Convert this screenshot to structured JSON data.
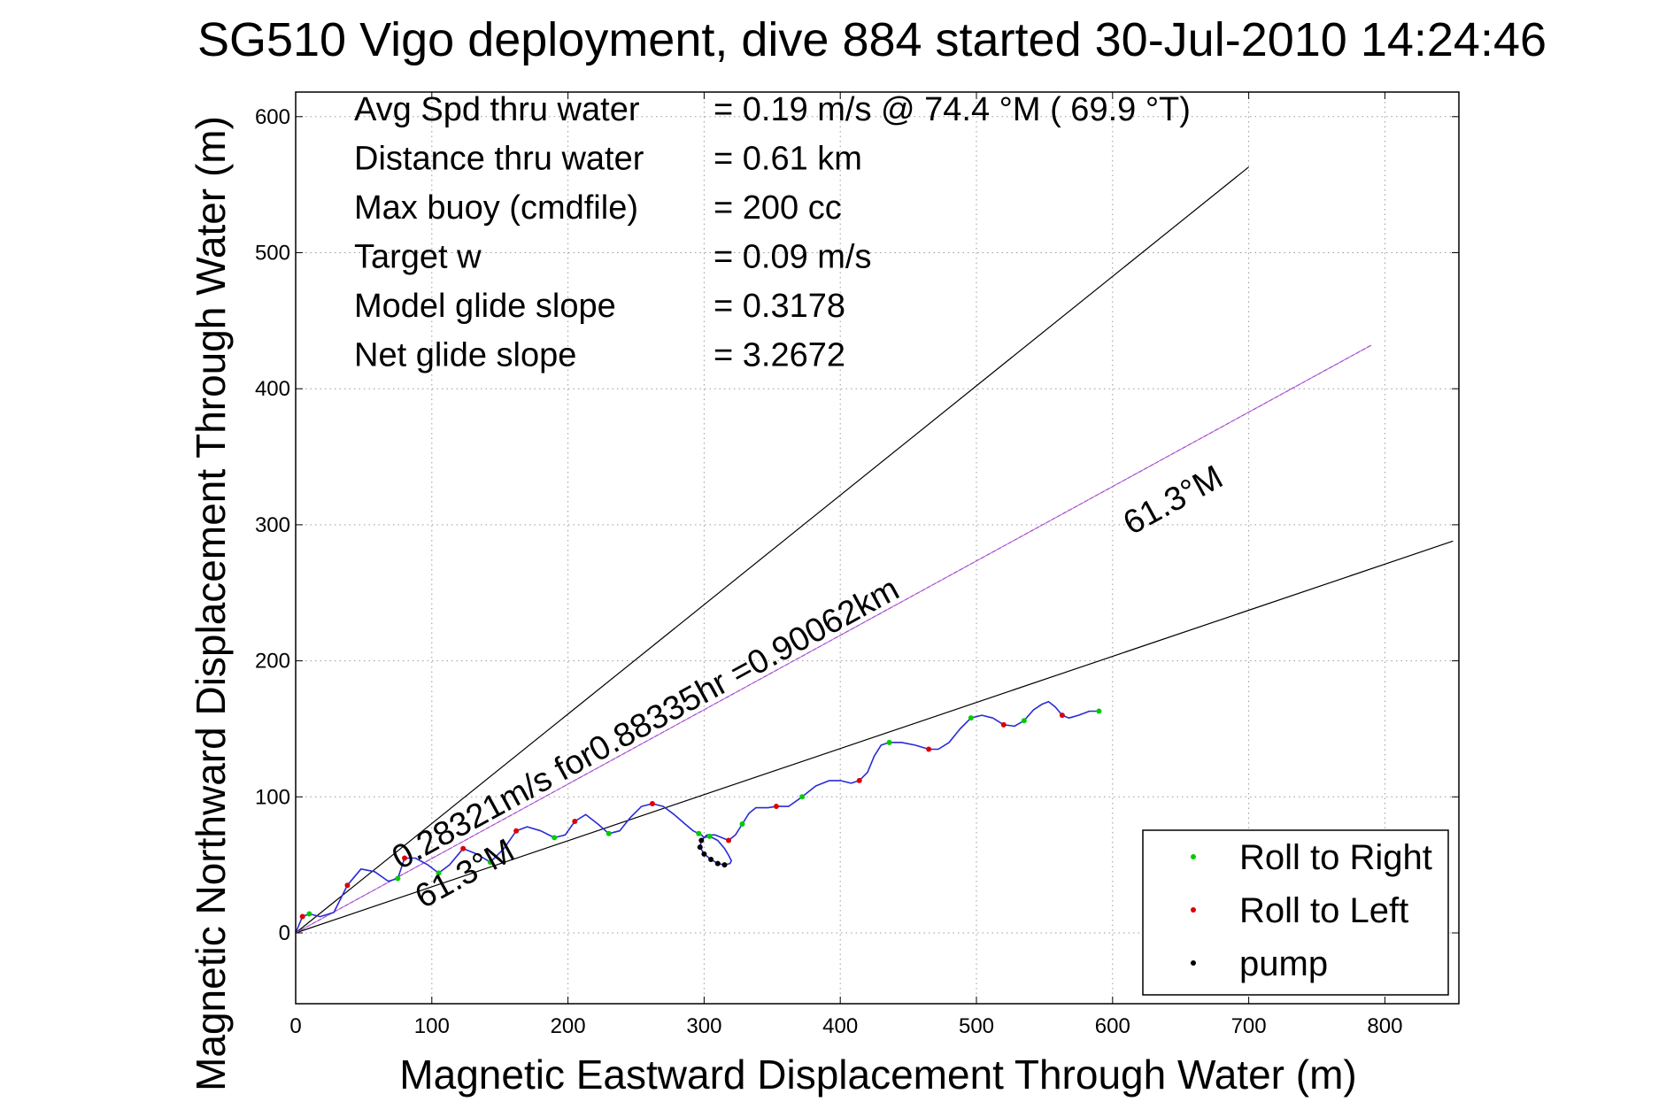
{
  "chart_data": {
    "type": "line",
    "title": "SG510 Vigo deployment, dive 884 started 30-Jul-2010 14:24:46",
    "xlabel": "Magnetic Eastward Displacement Through Water (m)",
    "ylabel": "Magnetic Northward Displacement Through Water (m)",
    "xlim": [
      0,
      850
    ],
    "ylim": [
      -55,
      610
    ],
    "xticks": [
      0,
      100,
      200,
      300,
      400,
      500,
      600,
      700,
      800
    ],
    "yticks": [
      0,
      100,
      200,
      300,
      400,
      500,
      600
    ],
    "grid": true,
    "legend_position": "bottom-right",
    "stats": [
      {
        "label": "Avg Spd thru water",
        "value": "=  0.19 m/s @  74.4 °M ( 69.9 °T)"
      },
      {
        "label": "Distance thru water",
        "value": "=  0.61 km"
      },
      {
        "label": "Max buoy (cmdfile)",
        "value": "= 200 cc"
      },
      {
        "label": "Target w",
        "value": "= 0.09 m/s"
      },
      {
        "label": "Model glide slope",
        "value": "= 0.3178"
      },
      {
        "label": "Net glide slope",
        "value": "= 3.2672"
      }
    ],
    "guide_lines": [
      {
        "name": "upper-bound",
        "x": [
          0,
          700
        ],
        "y": [
          0,
          563
        ],
        "color": "#000000"
      },
      {
        "name": "lower-bound",
        "x": [
          0,
          850
        ],
        "y": [
          0,
          288
        ],
        "color": "#000000"
      }
    ],
    "heading_line": {
      "x": [
        0,
        790
      ],
      "y": [
        0,
        432
      ],
      "color": "#cc33cc",
      "label": "0.28321m/s for0.88335hr =0.90062km"
    },
    "heading_labels": [
      "61.3°M",
      "61.3°M"
    ],
    "track": {
      "color": "#2a2ad8",
      "x": [
        0,
        5,
        10,
        18,
        28,
        38,
        48,
        58,
        68,
        75,
        80,
        88,
        97,
        105,
        113,
        123,
        133,
        143,
        153,
        162,
        170,
        180,
        190,
        198,
        205,
        213,
        222,
        230,
        238,
        246,
        254,
        262,
        270,
        278,
        286,
        292,
        296,
        298,
        300,
        304,
        310,
        315,
        318,
        320,
        319,
        315,
        310,
        305,
        300,
        297,
        298,
        302,
        308,
        313,
        318,
        323,
        328,
        333,
        338,
        342,
        347,
        353,
        362,
        372,
        382,
        392,
        400,
        408,
        414,
        420,
        425,
        430,
        436,
        445,
        455,
        465,
        472,
        480,
        488,
        496,
        504,
        512,
        520,
        528,
        535,
        542,
        548,
        553,
        558,
        563,
        568,
        575,
        583,
        590
      ],
      "y": [
        0,
        12,
        14,
        12,
        15,
        35,
        47,
        45,
        38,
        40,
        55,
        55,
        50,
        44,
        50,
        62,
        58,
        52,
        62,
        75,
        78,
        75,
        70,
        72,
        82,
        87,
        80,
        73,
        75,
        85,
        93,
        95,
        93,
        87,
        80,
        75,
        73,
        72,
        70,
        71,
        68,
        62,
        57,
        53,
        51,
        50,
        51,
        54,
        58,
        63,
        68,
        72,
        72,
        70,
        68,
        72,
        80,
        88,
        92,
        92,
        92,
        93,
        93,
        100,
        108,
        112,
        112,
        110,
        112,
        118,
        130,
        138,
        140,
        140,
        138,
        135,
        135,
        140,
        150,
        158,
        160,
        158,
        153,
        152,
        156,
        164,
        168,
        170,
        166,
        160,
        158,
        160,
        163,
        163
      ]
    },
    "series": [
      {
        "name": "Roll to Right",
        "color": "#00cc00",
        "x": [
          10,
          75,
          105,
          143,
          190,
          230,
          296,
          304,
          328,
          372,
          436,
          496,
          535,
          590
        ],
        "y": [
          14,
          40,
          44,
          52,
          70,
          73,
          73,
          71,
          80,
          100,
          140,
          158,
          156,
          163
        ]
      },
      {
        "name": "Roll to Left",
        "color": "#dd0000",
        "x": [
          5,
          38,
          80,
          123,
          162,
          205,
          262,
          318,
          353,
          414,
          465,
          520,
          563
        ],
        "y": [
          12,
          35,
          55,
          62,
          75,
          82,
          95,
          68,
          93,
          112,
          135,
          153,
          160
        ]
      },
      {
        "name": "pump",
        "color": "#000000",
        "x": [
          315,
          310,
          305,
          300,
          297,
          298
        ],
        "y": [
          50,
          51,
          54,
          58,
          63,
          68
        ]
      }
    ]
  }
}
